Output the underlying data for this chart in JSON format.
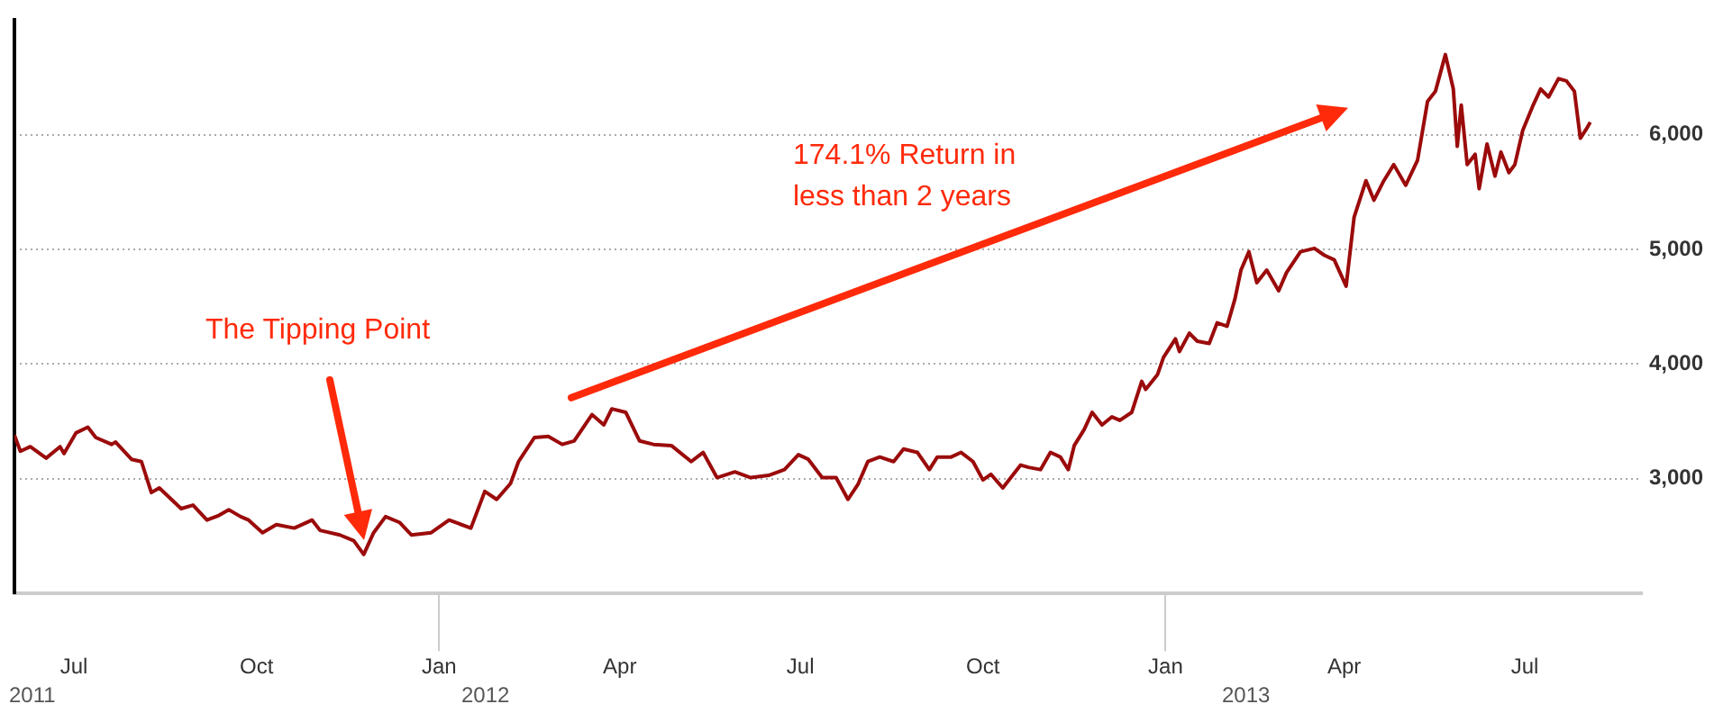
{
  "chart_data": {
    "type": "line",
    "x": [
      "2011-06-01",
      "2011-06-04",
      "2011-06-09",
      "2011-06-17",
      "2011-06-24",
      "2011-06-26",
      "2011-07-02",
      "2011-07-08",
      "2011-07-12",
      "2011-07-20",
      "2011-07-22",
      "2011-07-30",
      "2011-08-04",
      "2011-08-09",
      "2011-08-13",
      "2011-08-24",
      "2011-08-30",
      "2011-09-06",
      "2011-09-12",
      "2011-09-17",
      "2011-09-23",
      "2011-09-27",
      "2011-10-04",
      "2011-10-11",
      "2011-10-20",
      "2011-10-29",
      "2011-11-02",
      "2011-11-12",
      "2011-11-19",
      "2011-11-24",
      "2011-11-29",
      "2011-12-05",
      "2011-12-12",
      "2011-12-18",
      "2011-12-28",
      "2012-01-06",
      "2012-01-17",
      "2012-01-24",
      "2012-01-30",
      "2012-02-06",
      "2012-02-10",
      "2012-02-18",
      "2012-02-25",
      "2012-03-03",
      "2012-03-09",
      "2012-03-18",
      "2012-03-24",
      "2012-03-28",
      "2012-04-04",
      "2012-04-11",
      "2012-04-18",
      "2012-04-27",
      "2012-05-07",
      "2012-05-13",
      "2012-05-20",
      "2012-05-29",
      "2012-06-06",
      "2012-06-15",
      "2012-06-23",
      "2012-06-30",
      "2012-07-05",
      "2012-07-12",
      "2012-07-19",
      "2012-07-25",
      "2012-07-30",
      "2012-08-04",
      "2012-08-10",
      "2012-08-17",
      "2012-08-22",
      "2012-08-29",
      "2012-09-04",
      "2012-09-08",
      "2012-09-15",
      "2012-09-20",
      "2012-09-26",
      "2012-10-01",
      "2012-10-05",
      "2012-10-11",
      "2012-10-20",
      "2012-10-24",
      "2012-10-30",
      "2012-11-04",
      "2012-11-09",
      "2012-11-13",
      "2012-11-16",
      "2012-11-21",
      "2012-11-25",
      "2012-11-30",
      "2012-12-05",
      "2012-12-09",
      "2012-12-15",
      "2012-12-20",
      "2012-12-22",
      "2012-12-28",
      "2012-12-31",
      "2013-01-06",
      "2013-01-08",
      "2013-01-13",
      "2013-01-17",
      "2013-01-23",
      "2013-01-27",
      "2013-02-01",
      "2013-02-05",
      "2013-02-08",
      "2013-02-12",
      "2013-02-16",
      "2013-02-21",
      "2013-02-27",
      "2013-03-03",
      "2013-03-10",
      "2013-03-17",
      "2013-03-22",
      "2013-03-27",
      "2013-04-02",
      "2013-04-06",
      "2013-04-12",
      "2013-04-16",
      "2013-04-21",
      "2013-04-26",
      "2013-05-02",
      "2013-05-08",
      "2013-05-13",
      "2013-05-17",
      "2013-05-22",
      "2013-05-26",
      "2013-05-28",
      "2013-05-30",
      "2013-06-02",
      "2013-06-06",
      "2013-06-08",
      "2013-06-12",
      "2013-06-16",
      "2013-06-19",
      "2013-06-23",
      "2013-06-26",
      "2013-06-30",
      "2013-07-05",
      "2013-07-09",
      "2013-07-13",
      "2013-07-18",
      "2013-07-22",
      "2013-07-26",
      "2013-07-29",
      "2013-08-01",
      "2013-08-03"
    ],
    "series": [
      {
        "color": "#9b0b0b",
        "values": [
          3380,
          3240,
          3280,
          3180,
          3280,
          3220,
          3400,
          3450,
          3360,
          3300,
          3320,
          3170,
          3150,
          2880,
          2920,
          2740,
          2770,
          2640,
          2680,
          2730,
          2670,
          2640,
          2530,
          2600,
          2570,
          2640,
          2550,
          2510,
          2460,
          2340,
          2530,
          2670,
          2620,
          2510,
          2530,
          2640,
          2570,
          2890,
          2820,
          2960,
          3150,
          3360,
          3370,
          3300,
          3330,
          3560,
          3470,
          3610,
          3580,
          3330,
          3300,
          3290,
          3150,
          3230,
          3010,
          3060,
          3010,
          3030,
          3080,
          3210,
          3170,
          3010,
          3010,
          2820,
          2950,
          3150,
          3190,
          3150,
          3260,
          3230,
          3080,
          3190,
          3190,
          3230,
          3150,
          2990,
          3040,
          2920,
          3120,
          3100,
          3080,
          3230,
          3190,
          3080,
          3290,
          3430,
          3580,
          3470,
          3540,
          3510,
          3580,
          3850,
          3780,
          3910,
          4060,
          4220,
          4110,
          4270,
          4200,
          4180,
          4360,
          4330,
          4570,
          4820,
          4980,
          4710,
          4820,
          4640,
          4800,
          4980,
          5010,
          4950,
          4910,
          4680,
          5280,
          5600,
          5430,
          5600,
          5740,
          5560,
          5780,
          6290,
          6380,
          6700,
          6400,
          5900,
          6260,
          5740,
          5830,
          5530,
          5920,
          5640,
          5850,
          5670,
          5740,
          6040,
          6250,
          6400,
          6330,
          6490,
          6470,
          6380,
          5970,
          6050,
          6110
        ]
      }
    ],
    "xlim": [
      "2011-06-01",
      "2013-08-29"
    ],
    "xticks": [
      {
        "value": "2011-07-01",
        "label": "Jul"
      },
      {
        "value": "2011-10-01",
        "label": "Oct"
      },
      {
        "value": "2012-01-01",
        "label": "Jan"
      },
      {
        "value": "2012-04-01",
        "label": "Apr"
      },
      {
        "value": "2012-07-01",
        "label": "Jul"
      },
      {
        "value": "2012-10-01",
        "label": "Oct"
      },
      {
        "value": "2013-01-01",
        "label": "Jan"
      },
      {
        "value": "2013-04-01",
        "label": "Apr"
      },
      {
        "value": "2013-07-01",
        "label": "Jul"
      }
    ],
    "ylim": [
      2000,
      7000
    ],
    "yticks": [
      {
        "value": 3000,
        "label": "3,000"
      },
      {
        "value": 4000,
        "label": "4,000"
      },
      {
        "value": 5000,
        "label": "5,000"
      },
      {
        "value": 6000,
        "label": "6,000"
      }
    ],
    "grid": "y",
    "legend": false,
    "marker": "none",
    "line_style": "solid",
    "annotations": [
      "The Tipping Point",
      "174.1% Return in less than 2 years",
      "2011",
      "2012",
      "2013"
    ]
  }
}
